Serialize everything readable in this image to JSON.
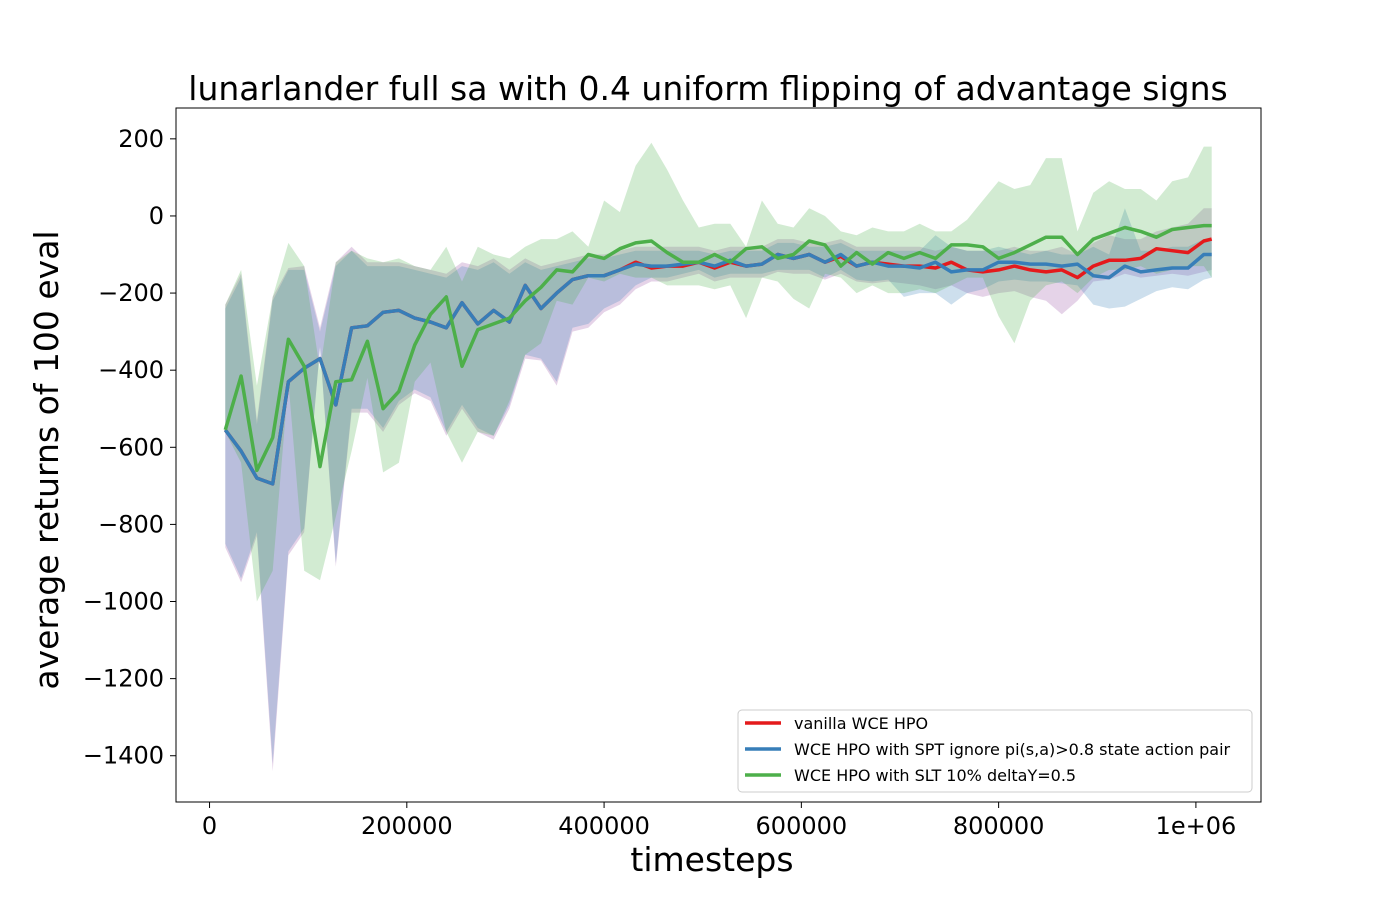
{
  "chart_data": {
    "type": "line",
    "title": "lunarlander full sa with 0.4 uniform flipping of advantage signs",
    "xlabel": "timesteps",
    "ylabel": "average returns of 100 eval",
    "xlim": [
      -34000,
      1066000
    ],
    "ylim": [
      -1520,
      280
    ],
    "x_ticks": [
      0,
      200000,
      400000,
      600000,
      800000,
      1000000
    ],
    "x_tick_labels": [
      "0",
      "200000",
      "400000",
      "600000",
      "800000",
      "1e+06"
    ],
    "y_ticks": [
      200,
      0,
      -200,
      -400,
      -600,
      -800,
      -1000,
      -1200,
      -1400
    ],
    "y_tick_labels": [
      "200",
      "0",
      "−200",
      "−400",
      "−600",
      "−800",
      "−1000",
      "−1200",
      "−1400"
    ],
    "legend_position": "lower-right",
    "grid": false,
    "x": [
      16000,
      32000,
      48000,
      64000,
      80000,
      96000,
      112000,
      128000,
      144000,
      160000,
      176000,
      192000,
      208000,
      224000,
      240000,
      256000,
      272000,
      288000,
      304000,
      320000,
      336000,
      352000,
      368000,
      384000,
      400000,
      416000,
      432000,
      448000,
      464000,
      480000,
      496000,
      512000,
      528000,
      544000,
      560000,
      576000,
      592000,
      608000,
      624000,
      640000,
      656000,
      672000,
      688000,
      704000,
      720000,
      736000,
      752000,
      768000,
      784000,
      800000,
      816000,
      832000,
      848000,
      864000,
      880000,
      896000,
      912000,
      928000,
      944000,
      960000,
      976000,
      992000,
      1008000,
      1016000
    ],
    "series": [
      {
        "name": "vanilla WCE HPO",
        "color": "#e41a1c",
        "draw_line": true,
        "values": [
          -555,
          -610,
          -680,
          -695,
          -430,
          -395,
          -370,
          -490,
          -290,
          -285,
          -250,
          -245,
          -265,
          -275,
          -290,
          -225,
          -280,
          -245,
          -275,
          -180,
          -240,
          -200,
          -165,
          -155,
          -155,
          -140,
          -120,
          -135,
          -130,
          -130,
          -120,
          -135,
          -120,
          -130,
          -125,
          -100,
          -110,
          -100,
          -120,
          -105,
          -130,
          -120,
          -125,
          -130,
          -130,
          -135,
          -120,
          -140,
          -145,
          -140,
          -130,
          -140,
          -145,
          -140,
          -160,
          -130,
          -115,
          -115,
          -110,
          -85,
          -90,
          -95,
          -65,
          -60
        ],
        "lower": [
          -860,
          -950,
          -830,
          -1440,
          -880,
          -820,
          -340,
          -910,
          -510,
          -510,
          -560,
          -490,
          -460,
          -480,
          -570,
          -500,
          -560,
          -580,
          -500,
          -370,
          -375,
          -440,
          -300,
          -290,
          -250,
          -230,
          -190,
          -170,
          -170,
          -160,
          -150,
          -170,
          -160,
          -160,
          -160,
          -145,
          -150,
          -150,
          -165,
          -150,
          -170,
          -175,
          -170,
          -175,
          -180,
          -190,
          -180,
          -200,
          -210,
          -200,
          -195,
          -210,
          -220,
          -255,
          -220,
          -170,
          -165,
          -150,
          -160,
          -155,
          -150,
          -155,
          -145,
          -140
        ],
        "upper": [
          -230,
          -150,
          -530,
          -210,
          -135,
          -130,
          -290,
          -120,
          -80,
          -120,
          -120,
          -120,
          -130,
          -140,
          -150,
          -120,
          -130,
          -110,
          -140,
          -110,
          -130,
          -120,
          -110,
          -100,
          -100,
          -90,
          -80,
          -80,
          -80,
          -80,
          -80,
          -90,
          -80,
          -80,
          -80,
          -60,
          -60,
          -70,
          -70,
          -60,
          -80,
          -80,
          -80,
          -80,
          -80,
          -90,
          -80,
          -90,
          -90,
          -90,
          -80,
          -90,
          -90,
          -80,
          -100,
          -70,
          -50,
          -60,
          -60,
          -40,
          -30,
          -20,
          20,
          20
        ],
        "band_color": "#984ea3"
      },
      {
        "name": "WCE HPO with SPT ignore pi(s,a)>0.8 state action pair",
        "color": "#377eb8",
        "draw_line": true,
        "values": [
          -555,
          -610,
          -680,
          -695,
          -430,
          -395,
          -370,
          -490,
          -290,
          -285,
          -250,
          -245,
          -265,
          -275,
          -290,
          -225,
          -280,
          -245,
          -275,
          -180,
          -240,
          -200,
          -165,
          -155,
          -155,
          -140,
          -125,
          -130,
          -130,
          -125,
          -120,
          -130,
          -115,
          -130,
          -125,
          -100,
          -110,
          -100,
          -120,
          -100,
          -130,
          -120,
          -130,
          -130,
          -135,
          -120,
          -145,
          -140,
          -140,
          -120,
          -120,
          -125,
          -125,
          -130,
          -125,
          -155,
          -160,
          -130,
          -145,
          -140,
          -135,
          -135,
          -100,
          -100
        ],
        "lower": [
          -850,
          -940,
          -820,
          -1420,
          -870,
          -810,
          -340,
          -900,
          -500,
          -500,
          -550,
          -480,
          -450,
          -470,
          -560,
          -490,
          -550,
          -570,
          -490,
          -360,
          -370,
          -430,
          -290,
          -280,
          -240,
          -220,
          -180,
          -160,
          -160,
          -150,
          -140,
          -160,
          -150,
          -150,
          -150,
          -140,
          -140,
          -140,
          -160,
          -140,
          -165,
          -170,
          -165,
          -210,
          -200,
          -200,
          -230,
          -200,
          -190,
          -170,
          -165,
          -170,
          -170,
          -175,
          -180,
          -230,
          -240,
          -235,
          -215,
          -195,
          -185,
          -190,
          -165,
          -160
        ],
        "upper": [
          -240,
          -160,
          -540,
          -220,
          -140,
          -140,
          -300,
          -130,
          -90,
          -130,
          -130,
          -130,
          -140,
          -150,
          -160,
          -130,
          -140,
          -120,
          -150,
          -120,
          -140,
          -130,
          -120,
          -110,
          -110,
          -100,
          -90,
          -90,
          -90,
          -90,
          -90,
          -100,
          -90,
          -90,
          -90,
          -70,
          -70,
          -80,
          -80,
          -70,
          -90,
          -90,
          -90,
          -90,
          -90,
          -50,
          -80,
          -90,
          -90,
          -80,
          -90,
          -100,
          -90,
          -100,
          -100,
          -80,
          -100,
          20,
          -90,
          -90,
          -80,
          -80,
          -60,
          -60
        ],
        "band_color": "#377eb8"
      },
      {
        "name": "WCE HPO with SLT 10% deltaY=0.5",
        "color": "#4daf4a",
        "draw_line": true,
        "values": [
          -555,
          -415,
          -660,
          -575,
          -320,
          -390,
          -650,
          -430,
          -425,
          -325,
          -500,
          -455,
          -335,
          -255,
          -210,
          -390,
          -295,
          -280,
          -265,
          -220,
          -185,
          -140,
          -145,
          -100,
          -110,
          -85,
          -70,
          -65,
          -95,
          -120,
          -120,
          -100,
          -120,
          -85,
          -80,
          -110,
          -100,
          -65,
          -75,
          -130,
          -95,
          -125,
          -95,
          -110,
          -95,
          -110,
          -75,
          -75,
          -80,
          -110,
          -95,
          -75,
          -55,
          -55,
          -100,
          -60,
          -45,
          -30,
          -40,
          -55,
          -35,
          -30,
          -25,
          -25
        ],
        "lower": [
          -560,
          -640,
          -1000,
          -920,
          -430,
          -920,
          -945,
          -780,
          -610,
          -420,
          -665,
          -640,
          -430,
          -380,
          -560,
          -640,
          -560,
          -570,
          -480,
          -360,
          -330,
          -220,
          -230,
          -160,
          -170,
          -150,
          -160,
          -160,
          -180,
          -180,
          -180,
          -190,
          -180,
          -265,
          -160,
          -170,
          -215,
          -240,
          -150,
          -160,
          -200,
          -180,
          -200,
          -200,
          -190,
          -200,
          -180,
          -160,
          -160,
          -260,
          -330,
          -220,
          -180,
          -170,
          -200,
          -160,
          -140,
          -140,
          -130,
          -150,
          -140,
          -130,
          -130,
          -160
        ],
        "upper": [
          -230,
          -140,
          -440,
          -210,
          -70,
          -130,
          -400,
          -120,
          -90,
          -110,
          -120,
          -110,
          -130,
          -140,
          -80,
          -170,
          -80,
          -100,
          -110,
          -80,
          -60,
          -60,
          -40,
          -80,
          40,
          10,
          130,
          190,
          120,
          40,
          -30,
          -20,
          -20,
          -80,
          40,
          -20,
          -30,
          20,
          0,
          -40,
          -50,
          -30,
          -40,
          -40,
          -20,
          -40,
          -40,
          -10,
          40,
          90,
          70,
          80,
          150,
          150,
          -40,
          60,
          90,
          70,
          70,
          40,
          90,
          100,
          180,
          180
        ],
        "band_color": "#4daf4a"
      }
    ]
  }
}
